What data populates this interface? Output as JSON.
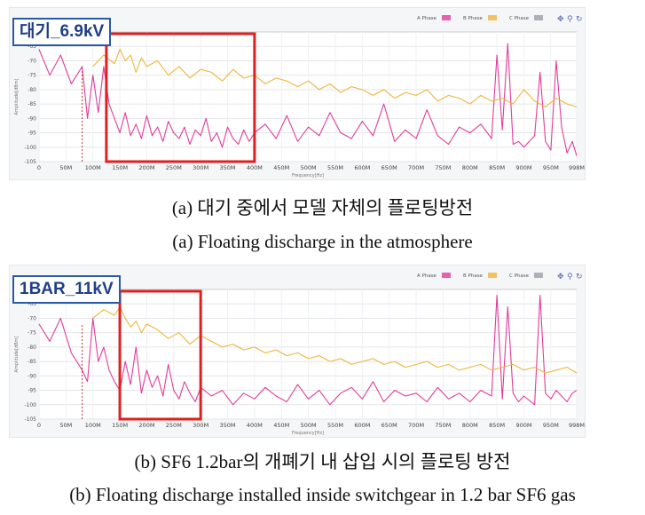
{
  "captions": {
    "a_korean": "(a) 대기 중에서 모델 자체의 플로팅방전",
    "a_english": "(a) Floating discharge in the atmosphere",
    "b_korean": "(b) SF6 1.2bar의 개폐기 내 삽입 시의 플로팅 방전",
    "b_english": "(b) Floating discharge installed inside switchgear in 1.2 bar SF6 gas"
  },
  "colors": {
    "a_phase": "#e23c9b",
    "b_phase": "#f0b53a",
    "c_phase": "#9aa0a6",
    "highlight": "#e02020",
    "panel_bg": "#f5f6f8",
    "tag_border": "#2a5aa6"
  },
  "chart_data": [
    {
      "type": "line",
      "label": "대기_6.9kV",
      "xlabel": "Frequency[Hz]",
      "ylabel": "Amplitude[dBm]",
      "xlim": [
        0,
        998
      ],
      "ylim": [
        -105,
        -60
      ],
      "x_ticks": [
        "0",
        "50M",
        "100M",
        "150M",
        "200M",
        "250M",
        "300M",
        "350M",
        "400M",
        "450M",
        "500M",
        "550M",
        "600M",
        "650M",
        "700M",
        "750M",
        "800M",
        "850M",
        "900M",
        "950M",
        "998M"
      ],
      "y_ticks": [
        "-65",
        "-70",
        "-75",
        "-80",
        "-85",
        "-90",
        "-95",
        "-100",
        "-105"
      ],
      "legend": [
        "A Phase",
        "B Phase",
        "C Phase"
      ],
      "highlight_box_mhz": [
        125,
        400
      ],
      "marker_line_mhz": 80,
      "series": [
        {
          "name": "A Phase",
          "color_key": "a_phase",
          "x": [
            0,
            20,
            40,
            60,
            80,
            90,
            100,
            110,
            120,
            130,
            140,
            150,
            160,
            170,
            180,
            190,
            200,
            210,
            220,
            230,
            240,
            250,
            260,
            270,
            280,
            290,
            300,
            310,
            320,
            330,
            340,
            350,
            360,
            370,
            380,
            390,
            400,
            420,
            440,
            460,
            480,
            500,
            520,
            540,
            560,
            580,
            600,
            620,
            640,
            660,
            680,
            700,
            720,
            740,
            760,
            780,
            800,
            820,
            840,
            850,
            860,
            870,
            880,
            890,
            900,
            920,
            930,
            940,
            950,
            960,
            970,
            980,
            990,
            998
          ],
          "y": [
            -66,
            -75,
            -68,
            -78,
            -72,
            -90,
            -75,
            -88,
            -72,
            -85,
            -90,
            -95,
            -88,
            -96,
            -92,
            -97,
            -89,
            -96,
            -93,
            -98,
            -91,
            -95,
            -97,
            -93,
            -99,
            -94,
            -96,
            -90,
            -98,
            -95,
            -100,
            -93,
            -97,
            -99,
            -94,
            -98,
            -95,
            -92,
            -97,
            -89,
            -98,
            -93,
            -96,
            -88,
            -95,
            -97,
            -91,
            -96,
            -85,
            -98,
            -94,
            -97,
            -87,
            -96,
            -99,
            -93,
            -95,
            -92,
            -97,
            -68,
            -94,
            -64,
            -99,
            -98,
            -100,
            -96,
            -74,
            -98,
            -101,
            -70,
            -93,
            -102,
            -98,
            -103
          ]
        },
        {
          "name": "B Phase",
          "color_key": "b_phase",
          "x": [
            100,
            120,
            140,
            150,
            160,
            170,
            180,
            190,
            200,
            220,
            240,
            260,
            280,
            300,
            320,
            340,
            360,
            380,
            400,
            420,
            440,
            460,
            480,
            500,
            520,
            540,
            560,
            580,
            600,
            620,
            640,
            660,
            680,
            700,
            720,
            740,
            760,
            780,
            800,
            820,
            840,
            860,
            880,
            900,
            920,
            940,
            960,
            980,
            998
          ],
          "y": [
            -72,
            -68,
            -71,
            -66,
            -70,
            -68,
            -74,
            -69,
            -72,
            -70,
            -75,
            -72,
            -76,
            -73,
            -74,
            -77,
            -73,
            -76,
            -75,
            -78,
            -76,
            -77,
            -79,
            -77,
            -80,
            -78,
            -81,
            -79,
            -80,
            -82,
            -80,
            -83,
            -81,
            -82,
            -80,
            -84,
            -82,
            -83,
            -85,
            -82,
            -84,
            -83,
            -85,
            -80,
            -84,
            -86,
            -83,
            -85,
            -86
          ]
        }
      ]
    },
    {
      "type": "line",
      "label": "1BAR_11kV",
      "xlabel": "Frequency[Hz]",
      "ylabel": "Amplitude[dBm]",
      "xlim": [
        0,
        998
      ],
      "ylim": [
        -105,
        -60
      ],
      "x_ticks": [
        "0",
        "50M",
        "100M",
        "150M",
        "200M",
        "250M",
        "300M",
        "350M",
        "400M",
        "450M",
        "500M",
        "550M",
        "600M",
        "650M",
        "700M",
        "750M",
        "800M",
        "850M",
        "900M",
        "950M",
        "998M"
      ],
      "y_ticks": [
        "-65",
        "-70",
        "-75",
        "-80",
        "-85",
        "-90",
        "-95",
        "-100",
        "-105"
      ],
      "legend": [
        "A Phase",
        "B Phase",
        "C Phase"
      ],
      "highlight_box_mhz": [
        150,
        300
      ],
      "marker_line_mhz": 80,
      "series": [
        {
          "name": "A Phase",
          "color_key": "a_phase",
          "x": [
            0,
            20,
            40,
            60,
            80,
            90,
            100,
            110,
            120,
            130,
            140,
            150,
            160,
            170,
            180,
            190,
            200,
            210,
            220,
            230,
            240,
            250,
            260,
            270,
            280,
            290,
            300,
            320,
            340,
            360,
            380,
            400,
            420,
            440,
            460,
            480,
            500,
            520,
            540,
            560,
            580,
            600,
            620,
            640,
            660,
            680,
            700,
            720,
            740,
            760,
            780,
            800,
            820,
            840,
            850,
            860,
            870,
            880,
            890,
            900,
            920,
            930,
            940,
            950,
            960,
            970,
            980,
            990,
            998
          ],
          "y": [
            -72,
            -78,
            -70,
            -82,
            -88,
            -92,
            -70,
            -85,
            -80,
            -88,
            -92,
            -95,
            -85,
            -93,
            -80,
            -96,
            -88,
            -94,
            -90,
            -97,
            -86,
            -95,
            -98,
            -92,
            -96,
            -99,
            -94,
            -97,
            -95,
            -100,
            -96,
            -98,
            -94,
            -97,
            -99,
            -93,
            -98,
            -95,
            -100,
            -96,
            -94,
            -98,
            -92,
            -99,
            -95,
            -97,
            -96,
            -99,
            -94,
            -98,
            -96,
            -99,
            -95,
            -97,
            -62,
            -98,
            -66,
            -96,
            -99,
            -97,
            -100,
            -62,
            -96,
            -98,
            -95,
            -97,
            -99,
            -96,
            -95
          ]
        },
        {
          "name": "B Phase",
          "color_key": "b_phase",
          "x": [
            100,
            120,
            140,
            150,
            160,
            170,
            180,
            190,
            200,
            220,
            240,
            260,
            280,
            300,
            320,
            340,
            360,
            380,
            400,
            420,
            440,
            460,
            480,
            500,
            520,
            540,
            560,
            580,
            600,
            620,
            640,
            660,
            680,
            700,
            720,
            740,
            760,
            780,
            800,
            820,
            840,
            860,
            880,
            900,
            920,
            940,
            960,
            980,
            998
          ],
          "y": [
            -70,
            -67,
            -69,
            -66,
            -70,
            -73,
            -71,
            -75,
            -72,
            -74,
            -77,
            -75,
            -79,
            -76,
            -78,
            -80,
            -79,
            -81,
            -80,
            -82,
            -81,
            -83,
            -82,
            -84,
            -83,
            -85,
            -84,
            -86,
            -85,
            -84,
            -86,
            -85,
            -87,
            -86,
            -85,
            -87,
            -86,
            -88,
            -87,
            -86,
            -88,
            -87,
            -86,
            -88,
            -87,
            -89,
            -88,
            -87,
            -89
          ]
        }
      ]
    }
  ]
}
